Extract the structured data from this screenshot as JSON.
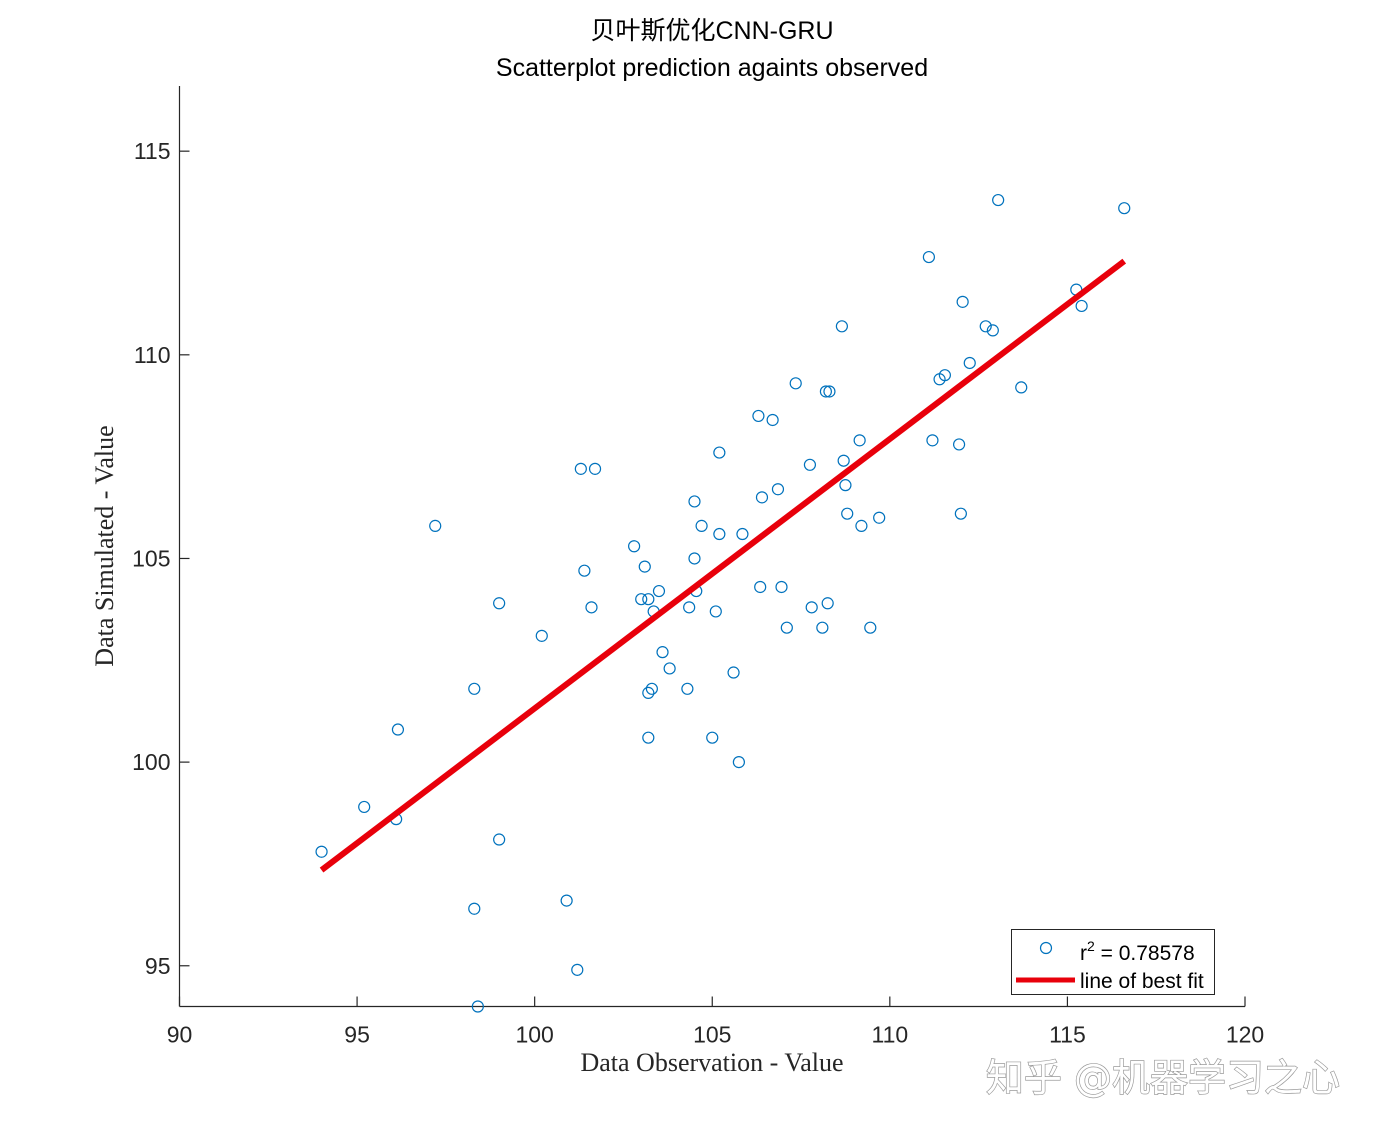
{
  "chart_data": {
    "type": "scatter",
    "title": "贝叶斯优化CNN-GRU",
    "subtitle": "Scatterplot prediction againts observed",
    "xlabel": "Data Observation - Value",
    "ylabel": "Data Simulated - Value",
    "xlim": [
      90,
      120
    ],
    "ylim": [
      94,
      116.6
    ],
    "xticks": [
      "90",
      "95",
      "100",
      "105",
      "110",
      "115",
      "120"
    ],
    "yticks": [
      "95",
      "100",
      "105",
      "110",
      "115"
    ],
    "grid": false,
    "legend_position": "bottom-right",
    "series": [
      {
        "name": "r² = 0.78578",
        "legend_label": "r",
        "legend_superscript": "2",
        "legend_value": " = 0.78578",
        "marker": "open-circle",
        "color": "#0072BD",
        "x": [
          94.0,
          95.2,
          96.1,
          96.15,
          97.2,
          98.3,
          98.3,
          98.4,
          99.0,
          99.0,
          100.2,
          100.9,
          101.2,
          101.3,
          101.4,
          101.6,
          101.7,
          102.8,
          103.0,
          103.1,
          103.2,
          103.2,
          103.2,
          103.3,
          103.35,
          103.5,
          103.6,
          103.8,
          104.3,
          104.35,
          104.5,
          104.5,
          104.55,
          104.7,
          105.0,
          105.1,
          105.2,
          105.2,
          105.6,
          105.75,
          105.85,
          106.3,
          106.35,
          106.4,
          106.7,
          106.85,
          106.95,
          107.1,
          107.35,
          107.75,
          107.8,
          108.1,
          108.2,
          108.25,
          108.3,
          108.65,
          108.7,
          108.75,
          108.8,
          109.15,
          109.2,
          109.45,
          109.7,
          111.1,
          111.2,
          111.4,
          111.55,
          111.95,
          112.0,
          112.05,
          112.25,
          112.7,
          112.9,
          113.05,
          113.7,
          115.25,
          115.4,
          116.6
        ],
        "y": [
          97.8,
          98.9,
          98.6,
          100.8,
          105.8,
          101.8,
          96.4,
          94.0,
          98.1,
          103.9,
          103.1,
          96.6,
          94.9,
          107.2,
          104.7,
          103.8,
          107.2,
          105.3,
          104.0,
          104.8,
          104.0,
          101.7,
          100.6,
          101.8,
          103.7,
          104.2,
          102.7,
          102.3,
          101.8,
          103.8,
          105.0,
          106.4,
          104.2,
          105.8,
          100.6,
          103.7,
          105.6,
          107.6,
          102.2,
          100.0,
          105.6,
          108.5,
          104.3,
          106.5,
          108.4,
          106.7,
          104.3,
          103.3,
          109.3,
          107.3,
          103.8,
          103.3,
          109.1,
          103.9,
          109.1,
          110.7,
          107.4,
          106.8,
          106.1,
          107.9,
          105.8,
          103.3,
          106.0,
          112.4,
          107.9,
          109.4,
          109.5,
          107.8,
          106.1,
          111.3,
          109.8,
          110.7,
          110.6,
          113.8,
          109.2,
          111.6,
          111.2,
          113.6
        ]
      },
      {
        "name": "line of best fit",
        "type": "line",
        "color": "#E8000B",
        "x": [
          94.0,
          116.6
        ],
        "y": [
          97.35,
          112.3
        ]
      }
    ]
  },
  "watermark": {
    "text": "知乎 @机器学习之心"
  }
}
